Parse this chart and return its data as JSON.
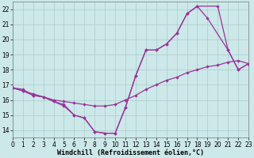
{
  "background_color": "#cce8e8",
  "grid_color": "#aacccc",
  "line_color": "#993399",
  "xlim": [
    0,
    23
  ],
  "ylim": [
    13.5,
    22.5
  ],
  "xlabel": "Windchill (Refroidissement éolien,°C)",
  "xticks": [
    0,
    1,
    2,
    3,
    4,
    5,
    6,
    7,
    8,
    9,
    10,
    11,
    12,
    13,
    14,
    15,
    16,
    17,
    18,
    19,
    20,
    21,
    22,
    23
  ],
  "yticks": [
    14,
    15,
    16,
    17,
    18,
    19,
    20,
    21,
    22
  ],
  "series1_x": [
    0,
    1,
    2,
    3,
    4,
    5,
    6,
    7,
    8,
    9,
    10,
    11,
    12,
    13,
    14,
    15,
    16,
    17,
    18,
    20,
    21,
    22,
    23
  ],
  "series1_y": [
    16.8,
    16.7,
    16.3,
    16.2,
    15.9,
    15.7,
    15.0,
    14.8,
    13.9,
    13.8,
    13.8,
    15.5,
    17.6,
    19.3,
    19.3,
    19.7,
    20.4,
    21.7,
    22.2,
    22.2,
    19.3,
    18.0,
    18.4
  ],
  "series2_x": [
    0,
    1,
    2,
    3,
    4,
    5,
    6,
    7,
    8,
    9,
    10,
    11,
    12,
    13,
    14,
    15,
    16,
    17,
    18,
    19,
    21,
    22,
    23
  ],
  "series2_y": [
    16.8,
    16.6,
    16.3,
    16.2,
    15.9,
    15.6,
    15.0,
    14.8,
    13.9,
    13.8,
    13.8,
    15.5,
    17.6,
    19.3,
    19.3,
    19.7,
    20.4,
    21.7,
    22.2,
    21.4,
    19.3,
    18.0,
    18.4
  ],
  "series3_x": [
    0,
    1,
    2,
    3,
    4,
    5,
    6,
    7,
    8,
    9,
    10,
    11,
    12,
    13,
    14,
    15,
    16,
    17,
    18,
    19,
    20,
    21,
    22,
    23
  ],
  "series3_y": [
    16.8,
    16.6,
    16.4,
    16.2,
    16.0,
    15.9,
    15.8,
    15.7,
    15.6,
    15.6,
    15.7,
    16.0,
    16.3,
    16.7,
    17.0,
    17.3,
    17.5,
    17.8,
    18.0,
    18.2,
    18.3,
    18.5,
    18.6,
    18.4
  ],
  "xlabel_fontsize": 6,
  "tick_fontsize": 5.5
}
